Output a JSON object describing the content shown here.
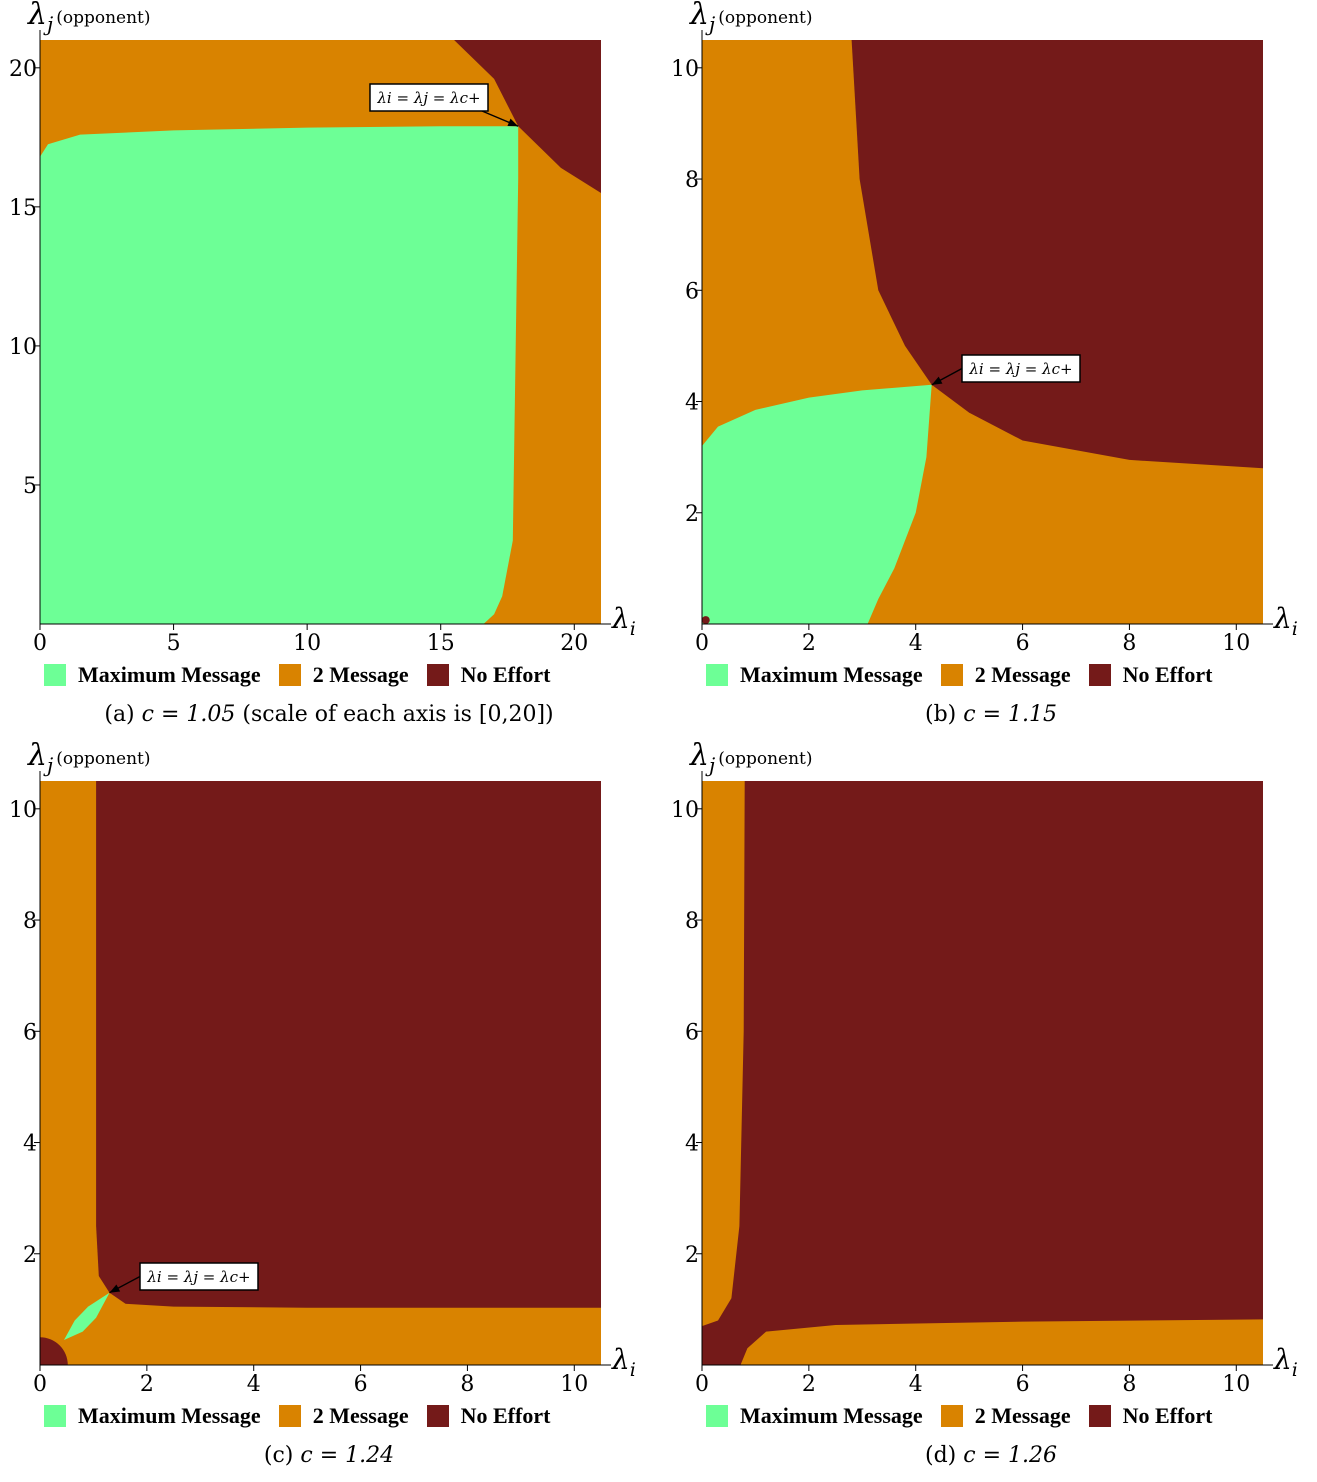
{
  "colors": {
    "max_message": "#6dff96",
    "two_message": "#d98300",
    "no_effort": "#741a19"
  },
  "legend": [
    "Maximum Message",
    "2 Message",
    "No Effort"
  ],
  "y_axis_label": {
    "symbol": "λ",
    "subscript": "j",
    "note": "(opponent)"
  },
  "x_axis_label": {
    "symbol": "λ",
    "subscript": "i"
  },
  "annotation": "λi = λj = λc+",
  "chart_data": [
    {
      "type": "heatmap",
      "id": "a",
      "caption_prefix": "(a) ",
      "caption_math": "c = 1.05",
      "caption_suffix": " (scale of each axis is [0,20])",
      "xlim": [
        0,
        21
      ],
      "ylim": [
        0,
        21
      ],
      "xticks": [
        0,
        5,
        10,
        15,
        20
      ],
      "yticks": [
        5,
        10,
        15,
        20
      ],
      "grid": false,
      "annotation_point": [
        17.9,
        17.9
      ],
      "regions": [
        "Maximum Message",
        "2 Message",
        "No Effort"
      ]
    },
    {
      "type": "heatmap",
      "id": "b",
      "caption_prefix": "(b) ",
      "caption_math": "c = 1.15",
      "caption_suffix": "",
      "xlim": [
        0,
        10.5
      ],
      "ylim": [
        0,
        10.5
      ],
      "xticks": [
        0,
        2,
        4,
        6,
        8,
        10
      ],
      "yticks": [
        2,
        4,
        6,
        8,
        10
      ],
      "grid": false,
      "annotation_point": [
        4.3,
        4.3
      ],
      "regions": [
        "Maximum Message",
        "2 Message",
        "No Effort"
      ]
    },
    {
      "type": "heatmap",
      "id": "c",
      "caption_prefix": "(c) ",
      "caption_math": "c = 1.24",
      "caption_suffix": "",
      "xlim": [
        0,
        10.5
      ],
      "ylim": [
        0,
        10.5
      ],
      "xticks": [
        0,
        2,
        4,
        6,
        8,
        10
      ],
      "yticks": [
        2,
        4,
        6,
        8,
        10
      ],
      "grid": false,
      "annotation_point": [
        1.3,
        1.3
      ],
      "regions": [
        "Maximum Message",
        "2 Message",
        "No Effort"
      ]
    },
    {
      "type": "heatmap",
      "id": "d",
      "caption_prefix": "(d) ",
      "caption_math": "c = 1.26",
      "caption_suffix": "",
      "xlim": [
        0,
        10.5
      ],
      "ylim": [
        0,
        10.5
      ],
      "xticks": [
        0,
        2,
        4,
        6,
        8,
        10
      ],
      "yticks": [
        2,
        4,
        6,
        8,
        10
      ],
      "grid": false,
      "annotation_point": null,
      "regions": [
        "2 Message",
        "No Effort"
      ]
    }
  ]
}
